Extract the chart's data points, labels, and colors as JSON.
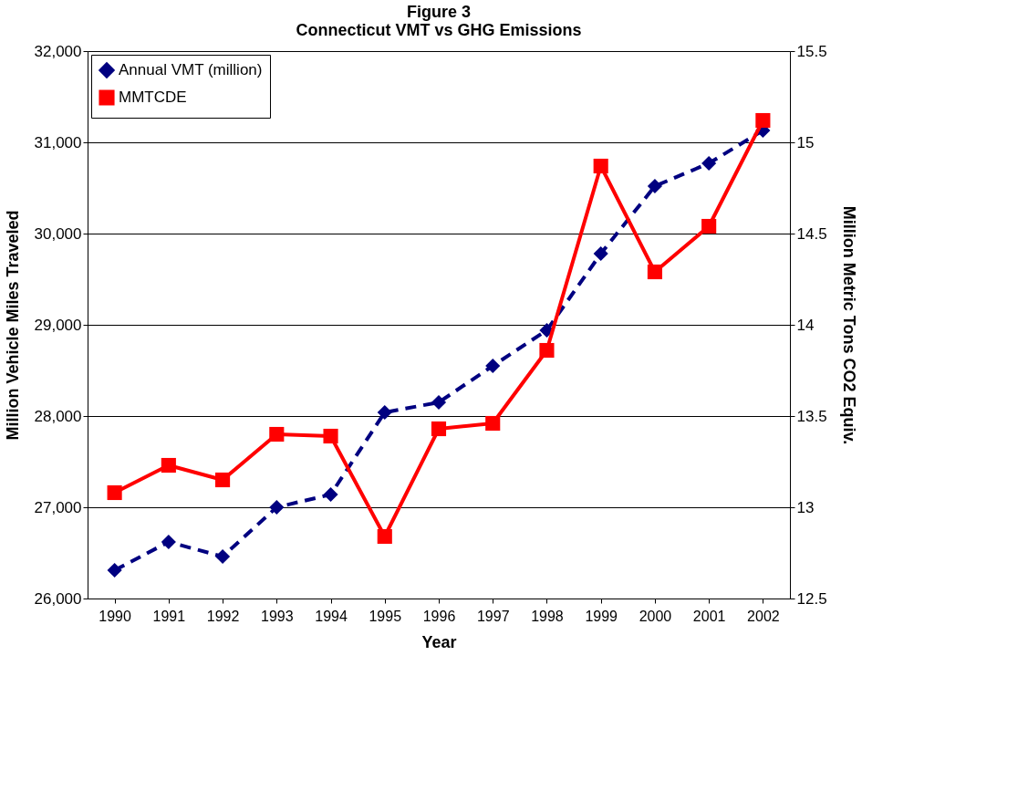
{
  "chart_data": {
    "type": "line",
    "title": "Figure 3\nConnecticut VMT vs GHG Emissions",
    "xlabel": "Year",
    "ylabel": "Million Vehicle Miles Traveled",
    "y2label": "Million Metric Tons CO2 Equiv.",
    "categories": [
      "1990",
      "1991",
      "1992",
      "1993",
      "1994",
      "1995",
      "1996",
      "1997",
      "1998",
      "1999",
      "2000",
      "2001",
      "2002"
    ],
    "series": [
      {
        "name": "Annual VMT (million)",
        "color": "#000080",
        "marker": "diamond",
        "line_style": "dashed",
        "values": [
          26310,
          26620,
          26460,
          27000,
          27140,
          28040,
          28150,
          28550,
          28940,
          29780,
          30520,
          30770,
          31130
        ]
      },
      {
        "name": "MMTCDE",
        "color": "#ff0000",
        "marker": "square",
        "line_style": "solid",
        "axis": "y2",
        "values": [
          13.08,
          13.23,
          13.15,
          13.4,
          13.39,
          12.84,
          13.43,
          13.46,
          13.86,
          14.87,
          14.29,
          14.54,
          15.12
        ]
      }
    ],
    "ylim": [
      26000,
      32000
    ],
    "yticks": [
      {
        "value": 26000,
        "label": "26,000"
      },
      {
        "value": 27000,
        "label": "27,000"
      },
      {
        "value": 28000,
        "label": "28,000"
      },
      {
        "value": 29000,
        "label": "29,000"
      },
      {
        "value": 30000,
        "label": "30,000"
      },
      {
        "value": 31000,
        "label": "31,000"
      },
      {
        "value": 32000,
        "label": "32,000"
      }
    ],
    "y2lim": [
      12.5,
      15.5
    ],
    "y2ticks": [
      {
        "value": 12.5,
        "label": "12.5"
      },
      {
        "value": 13,
        "label": "13"
      },
      {
        "value": 13.5,
        "label": "13.5"
      },
      {
        "value": 14,
        "label": "14"
      },
      {
        "value": 14.5,
        "label": "14.5"
      },
      {
        "value": 15,
        "label": "15"
      },
      {
        "value": 15.5,
        "label": "15.5"
      }
    ],
    "grid": "y",
    "legend": "top left"
  }
}
